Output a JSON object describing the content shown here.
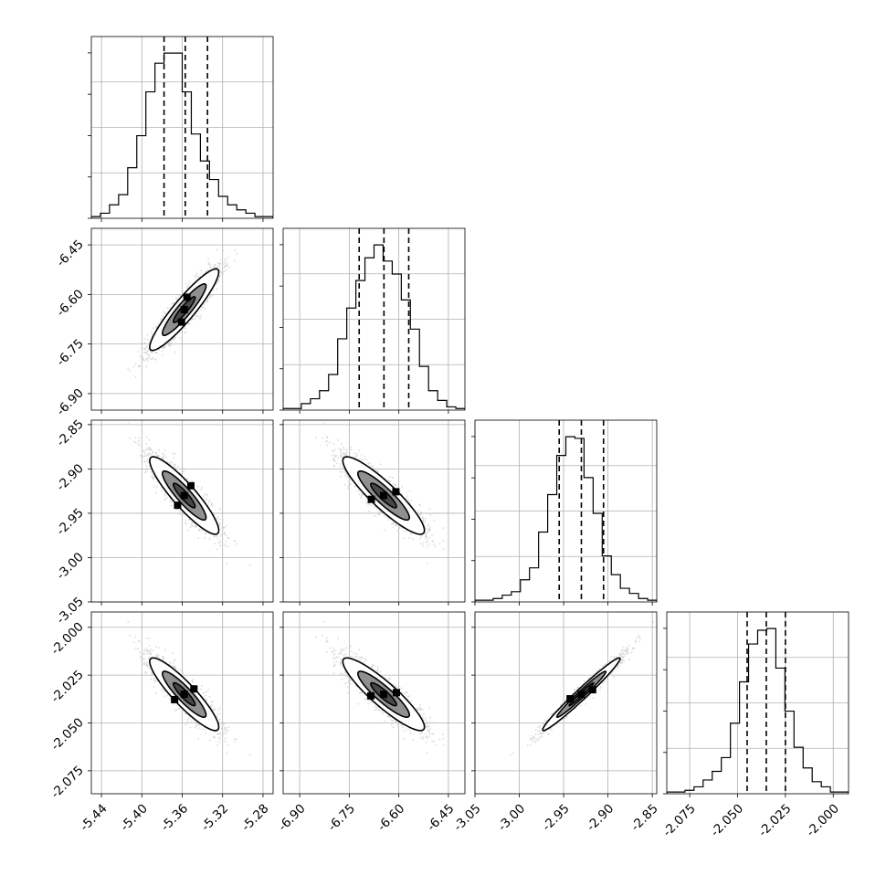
{
  "chart_data": {
    "type": "corner",
    "title": "",
    "parameters": [
      {
        "range": [
          -5.45,
          -5.27
        ],
        "ticks": [
          "-5.44",
          "-5.40",
          "-5.36",
          "-5.32",
          "-5.28"
        ],
        "tick_values": [
          -5.44,
          -5.4,
          -5.36,
          -5.32,
          -5.28
        ],
        "mean": -5.358,
        "sd": 0.018,
        "quantiles": [
          -5.378,
          -5.357,
          -5.335
        ],
        "hist_counts": [
          1,
          3,
          8,
          14,
          30,
          49,
          75,
          92,
          98,
          98,
          75,
          50,
          34,
          23,
          13,
          8,
          5,
          3,
          1,
          1
        ]
      },
      {
        "range": [
          -6.95,
          -6.4
        ],
        "ticks": [
          "-6.90",
          "-6.75",
          "-6.60",
          "-6.45"
        ],
        "tick_values": [
          -6.9,
          -6.75,
          -6.6,
          -6.45
        ],
        "mean": -6.646,
        "sd": 0.065,
        "quantiles": [
          -6.72,
          -6.645,
          -6.57
        ],
        "hist_counts": [
          1,
          1,
          4,
          7,
          12,
          22,
          44,
          63,
          80,
          94,
          102,
          92,
          84,
          68,
          50,
          27,
          12,
          6,
          2,
          1
        ]
      },
      {
        "range": [
          -3.05,
          -2.845
        ],
        "ticks": [
          "-3.05",
          "-3.00",
          "-2.95",
          "-2.90",
          "-2.85"
        ],
        "tick_values": [
          -3.05,
          -3.0,
          -2.95,
          -2.9,
          -2.85
        ],
        "mean": -2.93,
        "sd": 0.023,
        "quantiles": [
          -2.955,
          -2.93,
          -2.905
        ],
        "hist_counts": [
          1,
          1,
          2,
          4,
          6,
          13,
          20,
          41,
          63,
          86,
          97,
          96,
          73,
          52,
          27,
          16,
          8,
          5,
          2,
          1
        ]
      },
      {
        "range": [
          -2.087,
          -1.992
        ],
        "ticks": [
          "-2.075",
          "-2.050",
          "-2.025",
          "-2.000"
        ],
        "tick_values": [
          -2.075,
          -2.05,
          -2.025,
          -2.0
        ],
        "mean": -2.035,
        "sd": 0.01,
        "quantiles": [
          -2.045,
          -2.035,
          -2.025
        ],
        "hist_counts": [
          1,
          1,
          2,
          4,
          8,
          13,
          21,
          41,
          65,
          87,
          95,
          96,
          73,
          48,
          27,
          15,
          7,
          4,
          1,
          1
        ]
      }
    ],
    "correlations": [
      [
        1,
        0.92,
        -0.9,
        -0.9
      ],
      [
        0.92,
        1,
        -0.9,
        -0.9
      ],
      [
        -0.9,
        -0.9,
        1,
        0.98
      ],
      [
        -0.9,
        -0.9,
        0.98,
        1
      ]
    ],
    "contour_sigmas": [
      0.6,
      1.2,
      1.9
    ],
    "contour_fills": [
      "#3c3c3c",
      "#7d7d7d",
      "#c4c4c4"
    ],
    "scatter_color": "#c8c8c8",
    "sample_points": 1500,
    "grid": true
  }
}
